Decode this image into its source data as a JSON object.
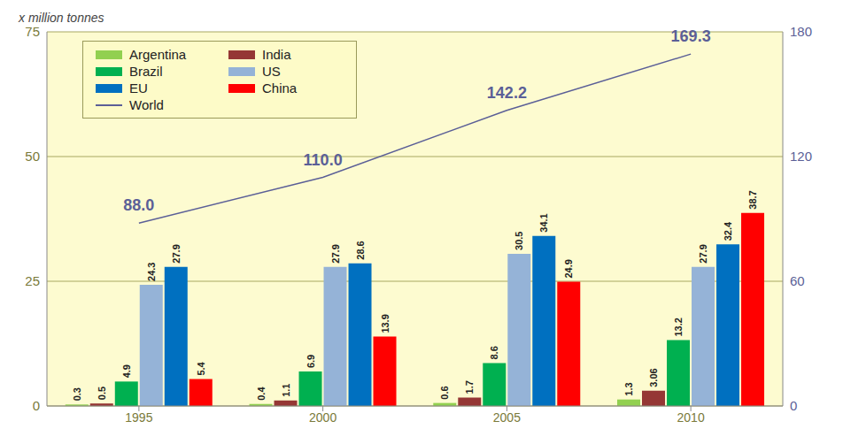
{
  "chart_data": {
    "type": "bar",
    "y_label": "x million tonnes",
    "categories": [
      "1995",
      "2000",
      "2005",
      "2010"
    ],
    "series": [
      {
        "name": "Argentina",
        "color": "#92d050",
        "values": [
          0.3,
          0.4,
          0.6,
          1.3
        ]
      },
      {
        "name": "India",
        "color": "#953735",
        "values": [
          0.5,
          1.1,
          1.7,
          3.06
        ]
      },
      {
        "name": "Brazil",
        "color": "#00b050",
        "values": [
          4.9,
          6.9,
          8.6,
          13.2
        ]
      },
      {
        "name": "US",
        "color": "#95b3d7",
        "values": [
          24.3,
          27.9,
          30.5,
          27.9
        ]
      },
      {
        "name": "EU",
        "color": "#0070c0",
        "values": [
          27.9,
          28.6,
          34.1,
          32.4
        ]
      },
      {
        "name": "China",
        "color": "#ff0000",
        "values": [
          5.4,
          13.9,
          24.9,
          38.7
        ]
      },
      {
        "name": "World",
        "type": "line",
        "axis": "y2",
        "color": "#5b5f97",
        "values": [
          88,
          110,
          142.2,
          169.3
        ],
        "value_labels": [
          "88.0",
          "110.0",
          "142.2",
          "169.3"
        ]
      }
    ],
    "ylim": [
      0,
      75
    ],
    "yticks": [
      0,
      25,
      50,
      75
    ],
    "y2lim": [
      0,
      180
    ],
    "y2ticks": [
      0,
      60,
      120,
      180
    ],
    "grid": true,
    "legend": "top-left",
    "data_labels": true
  }
}
